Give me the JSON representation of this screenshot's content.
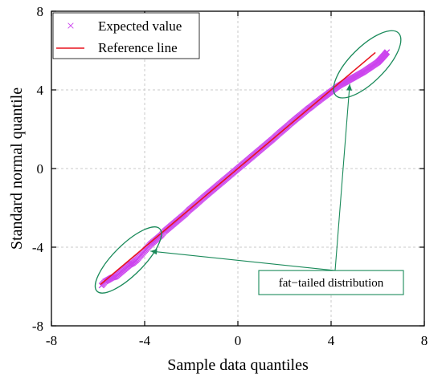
{
  "chart_data": {
    "type": "scatter",
    "xlabel": "Sample data quantiles",
    "ylabel": "Standard normal quantile",
    "xlim": [
      -8,
      8
    ],
    "ylim": [
      -8,
      8
    ],
    "xticks": [
      -8,
      -4,
      0,
      4,
      8
    ],
    "yticks": [
      -8,
      -4,
      0,
      4,
      8
    ],
    "xtick_labels": [
      "-8",
      "-4",
      "0",
      "4",
      "8"
    ],
    "ytick_labels": [
      "-8",
      "-4",
      "0",
      "4",
      "8"
    ],
    "grid": true,
    "legend": {
      "placement": "top-left",
      "entries": [
        {
          "label": "Expected value",
          "marker": "x",
          "color": "#cc44ee"
        },
        {
          "label": "Reference line",
          "marker": "line",
          "color": "#e8141e"
        }
      ]
    },
    "series": [
      {
        "name": "Expected value",
        "kind": "points",
        "color": "#cc44ee",
        "points": [
          [
            -5.85,
            -5.95
          ],
          [
            -5.7,
            -5.75
          ],
          [
            -5.55,
            -5.65
          ],
          [
            -5.4,
            -5.55
          ],
          [
            -5.25,
            -5.5
          ],
          [
            -5.1,
            -5.35
          ],
          [
            -4.95,
            -5.2
          ],
          [
            -4.8,
            -5.05
          ],
          [
            -4.65,
            -4.9
          ],
          [
            -4.5,
            -4.8
          ],
          [
            -4.35,
            -4.65
          ],
          [
            -4.2,
            -4.45
          ],
          [
            -4.05,
            -4.25
          ],
          [
            -3.9,
            -4.05
          ],
          [
            -3.75,
            -3.85
          ],
          [
            -3.6,
            -3.7
          ],
          [
            -3.45,
            -3.55
          ],
          [
            -3.3,
            -3.4
          ],
          [
            -3.15,
            -3.2
          ],
          [
            -3.0,
            -3.05
          ],
          [
            -2.85,
            -2.9
          ],
          [
            -2.7,
            -2.75
          ],
          [
            -2.55,
            -2.6
          ],
          [
            -2.4,
            -2.45
          ],
          [
            -2.25,
            -2.3
          ],
          [
            -2.1,
            -2.12
          ],
          [
            -1.95,
            -1.97
          ],
          [
            -1.8,
            -1.82
          ],
          [
            -1.65,
            -1.66
          ],
          [
            -1.5,
            -1.5
          ],
          [
            -1.35,
            -1.35
          ],
          [
            -1.2,
            -1.2
          ],
          [
            -1.05,
            -1.05
          ],
          [
            -0.9,
            -0.9
          ],
          [
            -0.75,
            -0.75
          ],
          [
            -0.6,
            -0.6
          ],
          [
            -0.45,
            -0.45
          ],
          [
            -0.3,
            -0.3
          ],
          [
            -0.15,
            -0.15
          ],
          [
            0.0,
            0.0
          ],
          [
            0.15,
            0.15
          ],
          [
            0.3,
            0.3
          ],
          [
            0.45,
            0.45
          ],
          [
            0.6,
            0.6
          ],
          [
            0.75,
            0.75
          ],
          [
            0.9,
            0.9
          ],
          [
            1.05,
            1.05
          ],
          [
            1.2,
            1.2
          ],
          [
            1.35,
            1.35
          ],
          [
            1.5,
            1.5
          ],
          [
            1.65,
            1.66
          ],
          [
            1.8,
            1.82
          ],
          [
            1.95,
            1.97
          ],
          [
            2.1,
            2.12
          ],
          [
            2.25,
            2.28
          ],
          [
            2.4,
            2.43
          ],
          [
            2.55,
            2.58
          ],
          [
            2.7,
            2.72
          ],
          [
            2.85,
            2.87
          ],
          [
            3.0,
            3.02
          ],
          [
            3.15,
            3.15
          ],
          [
            3.3,
            3.3
          ],
          [
            3.45,
            3.43
          ],
          [
            3.6,
            3.57
          ],
          [
            3.75,
            3.7
          ],
          [
            3.9,
            3.83
          ],
          [
            4.05,
            3.96
          ],
          [
            4.2,
            4.1
          ],
          [
            4.35,
            4.22
          ],
          [
            4.5,
            4.32
          ],
          [
            4.65,
            4.42
          ],
          [
            4.8,
            4.52
          ],
          [
            4.95,
            4.62
          ],
          [
            5.1,
            4.72
          ],
          [
            5.25,
            4.82
          ],
          [
            5.4,
            4.92
          ],
          [
            5.55,
            5.04
          ],
          [
            5.7,
            5.16
          ],
          [
            5.85,
            5.28
          ],
          [
            6.0,
            5.4
          ],
          [
            6.1,
            5.52
          ],
          [
            6.2,
            5.65
          ],
          [
            6.3,
            5.78
          ],
          [
            6.4,
            5.92
          ]
        ]
      },
      {
        "name": "Reference line",
        "kind": "line",
        "color": "#e8141e",
        "x": [
          -5.9,
          5.9
        ],
        "y": [
          -5.9,
          5.9
        ]
      }
    ],
    "annotations": [
      {
        "text": "fat−tailed distribution",
        "box_center": [
          4.0,
          -5.8
        ],
        "arrows_to": [
          [
            -3.75,
            -4.2
          ],
          [
            4.8,
            4.3
          ]
        ],
        "color": "#1a8a5a",
        "ellipses": [
          {
            "cx": -4.7,
            "cy": -4.65,
            "rx": 1.9,
            "ry": 0.65,
            "angle_deg": 45
          },
          {
            "cx": 5.55,
            "cy": 5.3,
            "rx": 1.9,
            "ry": 0.75,
            "angle_deg": 45
          }
        ]
      }
    ]
  }
}
